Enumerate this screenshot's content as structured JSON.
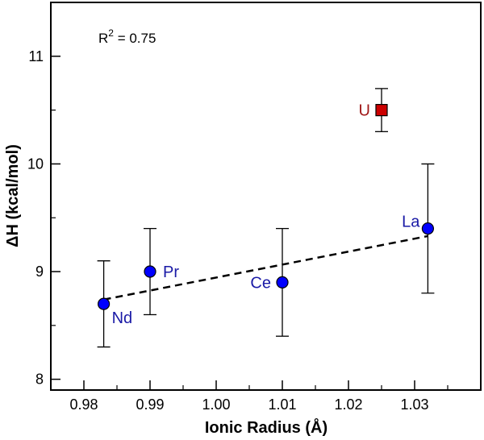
{
  "chart_data": {
    "type": "scatter",
    "xlabel": "Ionic Radius (Å)",
    "ylabel": "ΔH (kcal/mol)",
    "xlim": [
      0.975,
      1.04
    ],
    "ylim": [
      7.9,
      11.5
    ],
    "xticks": [
      0.98,
      0.99,
      1.0,
      1.01,
      1.02,
      1.03
    ],
    "xtick_labels": [
      "0.98",
      "0.99",
      "1.00",
      "1.01",
      "1.02",
      "1.03"
    ],
    "yticks": [
      8,
      9,
      10,
      11
    ],
    "ytick_labels": [
      "8",
      "9",
      "10",
      "11"
    ],
    "grid": false,
    "annotation": {
      "prefix": "R",
      "sup": "2",
      "suffix": " = 0.75"
    },
    "series": [
      {
        "marker": "circle",
        "color": "#0000ff",
        "label_color": "#1a1aa6",
        "points": [
          {
            "label": "Nd",
            "x": 0.983,
            "y": 8.7,
            "err": 0.4,
            "label_pos": "below-right"
          },
          {
            "label": "Pr",
            "x": 0.99,
            "y": 9.0,
            "err": 0.4,
            "label_pos": "right"
          },
          {
            "label": "Ce",
            "x": 1.01,
            "y": 8.9,
            "err": 0.5,
            "label_pos": "left"
          },
          {
            "label": "La",
            "x": 1.032,
            "y": 9.4,
            "err": 0.6,
            "label_pos": "upper-left"
          }
        ]
      },
      {
        "marker": "square",
        "color": "#cc0000",
        "label_color": "#a01818",
        "points": [
          {
            "label": "U",
            "x": 1.025,
            "y": 10.5,
            "err": 0.2,
            "label_pos": "left"
          }
        ]
      }
    ],
    "fit_line": {
      "style": "dashed",
      "color": "#000000",
      "x": [
        0.983,
        1.032
      ],
      "y": [
        8.74,
        9.33
      ]
    }
  }
}
